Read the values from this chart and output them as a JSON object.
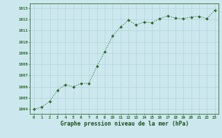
{
  "x": [
    0,
    1,
    2,
    3,
    4,
    5,
    6,
    7,
    8,
    9,
    10,
    11,
    12,
    13,
    14,
    15,
    16,
    17,
    18,
    19,
    20,
    21,
    22,
    23
  ],
  "y": [
    1004.0,
    1004.2,
    1004.7,
    1005.7,
    1006.2,
    1006.0,
    1006.3,
    1006.3,
    1007.8,
    1009.1,
    1010.5,
    1011.3,
    1011.9,
    1011.5,
    1011.75,
    1011.7,
    1012.05,
    1012.3,
    1012.1,
    1012.05,
    1012.2,
    1012.25,
    1012.05,
    1012.8
  ],
  "line_color": "#2d6a2d",
  "marker_color": "#2d6a2d",
  "bg_color": "#cce8ee",
  "grid_color": "#b0d4da",
  "xlabel": "Graphe pression niveau de la mer (hPa)",
  "xlabel_color": "#1a4d1a",
  "ylabel_ticks": [
    1004,
    1005,
    1006,
    1007,
    1008,
    1009,
    1010,
    1011,
    1012,
    1013
  ],
  "ylim": [
    1003.6,
    1013.4
  ],
  "xlim": [
    -0.5,
    23.5
  ],
  "xticks": [
    0,
    1,
    2,
    3,
    4,
    5,
    6,
    7,
    8,
    9,
    10,
    11,
    12,
    13,
    14,
    15,
    16,
    17,
    18,
    19,
    20,
    21,
    22,
    23
  ]
}
